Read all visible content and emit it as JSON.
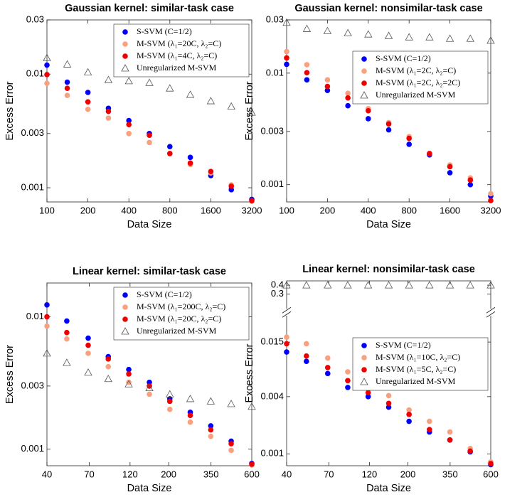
{
  "chart_data": [
    {
      "type": "scatter",
      "title": "Gaussian kernel: similar-task case",
      "xlabel": "Data Size",
      "ylabel": "Excess Error",
      "xscale": "log",
      "yscale": "log",
      "legend": "upper right",
      "x": [
        100,
        141,
        200,
        283,
        400,
        566,
        800,
        1131,
        1600,
        2263,
        3200
      ],
      "xlim": [
        100,
        3200
      ],
      "xticks": [
        100,
        200,
        400,
        800,
        1600,
        3200
      ],
      "ylim": [
        0.00075,
        0.03
      ],
      "yticks": [
        0.001,
        0.003,
        0.01,
        0.03
      ],
      "series": [
        {
          "name": "S-SVM (C=1/2)",
          "color": "#0000ff",
          "marker": "circle",
          "values": [
            0.012,
            0.0085,
            0.0069,
            0.005,
            0.0039,
            0.003,
            0.0023,
            0.00185,
            0.00128,
            0.00096,
            0.00079
          ]
        },
        {
          "name": "M-SVM (λ₁=20C, λ₂=C)",
          "color": "#f9a07e",
          "marker": "circle",
          "values": [
            0.0083,
            0.0065,
            0.0049,
            0.0041,
            0.003,
            0.0025,
            0.002,
            0.0016,
            0.00135,
            0.00106,
            0.00076
          ]
        },
        {
          "name": "M-SVM (λ₁=4C, λ₂=C)",
          "color": "#ee0000",
          "marker": "circle",
          "values": [
            0.0099,
            0.0075,
            0.0057,
            0.0047,
            0.0036,
            0.0029,
            0.002,
            0.00165,
            0.00139,
            0.00103,
            0.00077
          ]
        },
        {
          "name": "Unregularized M-SVM",
          "color": "#555555",
          "marker": "triangle",
          "values": [
            0.0139,
            0.0122,
            0.0104,
            0.0089,
            0.0087,
            0.0084,
            0.0075,
            0.0066,
            0.0058,
            0.0052,
            0.0046
          ]
        }
      ]
    },
    {
      "type": "scatter",
      "title": "Gaussian kernel: nonsimilar-task case",
      "xlabel": "Data Size",
      "ylabel": "Excess Error",
      "xscale": "log",
      "yscale": "log",
      "legend": "upper right",
      "x": [
        100,
        141,
        200,
        283,
        400,
        566,
        800,
        1131,
        1600,
        2263,
        3200
      ],
      "xlim": [
        100,
        3200
      ],
      "xticks": [
        100,
        200,
        400,
        800,
        1600,
        3200
      ],
      "ylim": [
        0.0007,
        0.03
      ],
      "yticks": [
        0.001,
        0.003,
        0.01,
        0.03
      ],
      "series": [
        {
          "name": "S-SVM (C=1/2)",
          "color": "#0000ff",
          "marker": "circle",
          "values": [
            0.012,
            0.0087,
            0.007,
            0.0051,
            0.0039,
            0.0031,
            0.0023,
            0.00185,
            0.00128,
            0.001,
            0.00079
          ]
        },
        {
          "name": "M-SVM (λ₁=2C, λ₂=C)",
          "color": "#f9a07e",
          "marker": "circle",
          "values": [
            0.0156,
            0.0119,
            0.0087,
            0.0066,
            0.0048,
            0.0036,
            0.0027,
            0.0019,
            0.0015,
            0.00115,
            0.00083
          ]
        },
        {
          "name": "M-SVM (λ₁=2C, λ₂=2C)",
          "color": "#ee0000",
          "marker": "circle",
          "values": [
            0.0137,
            0.0101,
            0.0076,
            0.006,
            0.0046,
            0.0035,
            0.0026,
            0.0019,
            0.00145,
            0.0011,
            0.00072
          ]
        },
        {
          "name": "Unregularized M-SVM",
          "color": "#555555",
          "marker": "triangle",
          "values": [
            0.0284,
            0.025,
            0.0239,
            0.0229,
            0.0223,
            0.0216,
            0.021,
            0.021,
            0.0204,
            0.0204,
            0.0196
          ]
        }
      ]
    },
    {
      "type": "scatter",
      "title": "Linear kernel: similar-task case",
      "xlabel": "Data Size",
      "ylabel": "Excess Error",
      "xscale": "log",
      "yscale": "log",
      "legend": "upper right",
      "x": [
        40,
        52,
        69,
        90,
        118,
        155,
        203,
        266,
        349,
        457,
        600
      ],
      "xlim": [
        40,
        600
      ],
      "xticks": [
        40,
        70,
        120,
        200,
        350,
        600
      ],
      "ylim": [
        0.00075,
        0.018
      ],
      "yticks": [
        0.001,
        0.003,
        0.01
      ],
      "series": [
        {
          "name": "S-SVM (C=1/2)",
          "color": "#0000ff",
          "marker": "circle",
          "values": [
            0.0123,
            0.0093,
            0.0069,
            0.005,
            0.004,
            0.0032,
            0.0024,
            0.0019,
            0.0015,
            0.00115,
            0.00078
          ]
        },
        {
          "name": "M-SVM (λ₁=200C, λ₂=C)",
          "color": "#f9a07e",
          "marker": "circle",
          "values": [
            0.0085,
            0.0068,
            0.0053,
            0.0042,
            0.0032,
            0.0026,
            0.002,
            0.0016,
            0.00125,
            0.00098,
            0.00076
          ]
        },
        {
          "name": "M-SVM (λ₁=20C, λ₂=C)",
          "color": "#ee0000",
          "marker": "circle",
          "values": [
            0.01,
            0.0076,
            0.0061,
            0.0048,
            0.0037,
            0.003,
            0.0023,
            0.0018,
            0.0014,
            0.0011,
            0.00077
          ]
        },
        {
          "name": "Unregularized M-SVM",
          "color": "#555555",
          "marker": "triangle",
          "values": [
            0.0053,
            0.0045,
            0.0038,
            0.0034,
            0.0031,
            0.0029,
            0.0026,
            0.0024,
            0.0023,
            0.0022,
            0.0021
          ]
        }
      ]
    },
    {
      "type": "scatter",
      "title": "Linear kernel: nonsimilar-task case",
      "xlabel": "Data Size",
      "ylabel": "Excess Error",
      "xscale": "log",
      "yscale": "log",
      "legend": "upper right",
      "x": [
        40,
        52,
        69,
        90,
        118,
        155,
        203,
        266,
        349,
        457,
        600
      ],
      "xlim": [
        40,
        600
      ],
      "xticks": [
        40,
        70,
        120,
        200,
        350,
        600
      ],
      "ylim": [
        0.00075,
        0.46
      ],
      "ybreak": [
        0.027,
        0.2
      ],
      "yticks": [
        0.001,
        0.004,
        0.015,
        0.3,
        0.4
      ],
      "series": [
        {
          "name": "S-SVM (C=1/2)",
          "color": "#0000ff",
          "marker": "circle",
          "values": [
            0.0118,
            0.0094,
            0.007,
            0.005,
            0.004,
            0.0031,
            0.0022,
            0.0017,
            0.0014,
            0.00105,
            0.00077
          ]
        },
        {
          "name": "M-SVM (λ₁=10C, λ₂=C)",
          "color": "#f9a07e",
          "marker": "circle",
          "values": [
            0.0169,
            0.0144,
            0.0102,
            0.0073,
            0.0054,
            0.0041,
            0.0029,
            0.0022,
            0.0017,
            0.00114,
            0.00082
          ]
        },
        {
          "name": "M-SVM (λ₁=5C, λ₂=C)",
          "color": "#ee0000",
          "marker": "circle",
          "values": [
            0.0144,
            0.0107,
            0.0081,
            0.0059,
            0.0044,
            0.0034,
            0.0026,
            0.0018,
            0.0014,
            0.00107,
            0.00079
          ]
        },
        {
          "name": "Unregularized M-SVM",
          "color": "#555555",
          "marker": "triangle",
          "values": [
            0.4,
            0.4,
            0.4,
            0.4,
            0.4,
            0.4,
            0.4,
            0.4,
            0.4,
            0.4,
            0.4
          ]
        }
      ]
    }
  ]
}
